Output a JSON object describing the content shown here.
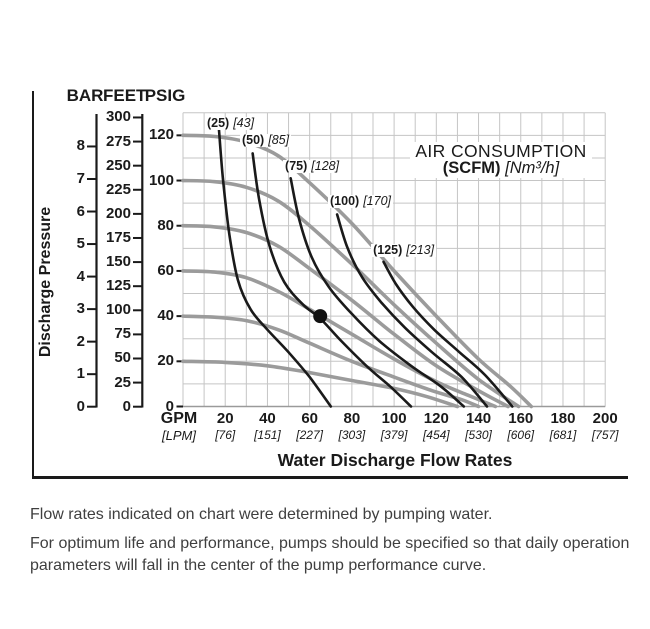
{
  "notes": {
    "line1": "Flow rates indicated on chart were determined by pumping water.",
    "line2": "For optimum life and performance, pumps should be specified so that daily operation parameters will fall in the center of the pump performance curve."
  },
  "chart_data": {
    "type": "line",
    "title": {
      "line1": "AIR CONSUMPTION",
      "scfm": "(SCFM)",
      "unit": "[Nm³/h]"
    },
    "x_axis": {
      "label": "Water Discharge Flow Rates",
      "unit_primary": "GPM",
      "unit_secondary": "[LPM]",
      "xlim_gpm": [
        0,
        200
      ],
      "grid_step_gpm": 10,
      "ticks": [
        {
          "gpm": "20",
          "lpm": "[76]"
        },
        {
          "gpm": "40",
          "lpm": "[151]"
        },
        {
          "gpm": "60",
          "lpm": "[227]"
        },
        {
          "gpm": "80",
          "lpm": "[303]"
        },
        {
          "gpm": "100",
          "lpm": "[379]"
        },
        {
          "gpm": "120",
          "lpm": "[454]"
        },
        {
          "gpm": "140",
          "lpm": "[530]"
        },
        {
          "gpm": "160",
          "lpm": "[606]"
        },
        {
          "gpm": "180",
          "lpm": "[681]"
        },
        {
          "gpm": "200",
          "lpm": "[757]"
        }
      ]
    },
    "y_axis": {
      "label": "Discharge Pressure",
      "ylim_psig": [
        0,
        130
      ],
      "grid_step_psig": 10,
      "scales": {
        "bar": {
          "header": "BAR",
          "ticks": [
            0,
            1,
            2,
            3,
            4,
            5,
            6,
            7,
            8
          ],
          "max": 8
        },
        "feet": {
          "header": "FEET",
          "ticks": [
            0,
            25,
            50,
            75,
            100,
            125,
            150,
            175,
            200,
            225,
            250,
            275,
            300
          ],
          "max": 300
        },
        "psig": {
          "header": "PSIG",
          "ticks": [
            0,
            20,
            40,
            60,
            80,
            100,
            120
          ],
          "max": 120
        }
      }
    },
    "performance_curves": [
      {
        "air_inlet_psig": 120,
        "points": [
          [
            0,
            120
          ],
          [
            15,
            119.5
          ],
          [
            30,
            117
          ],
          [
            45,
            111
          ],
          [
            60,
            99
          ],
          [
            80,
            81
          ],
          [
            100,
            60
          ],
          [
            120,
            40
          ],
          [
            140,
            21
          ],
          [
            155,
            9
          ],
          [
            165,
            0
          ]
        ]
      },
      {
        "air_inlet_psig": 100,
        "points": [
          [
            0,
            100
          ],
          [
            15,
            99.5
          ],
          [
            30,
            97
          ],
          [
            45,
            91
          ],
          [
            60,
            80
          ],
          [
            80,
            63
          ],
          [
            100,
            45
          ],
          [
            120,
            28
          ],
          [
            140,
            12
          ],
          [
            159,
            0
          ]
        ]
      },
      {
        "air_inlet_psig": 80,
        "points": [
          [
            0,
            80
          ],
          [
            15,
            79.5
          ],
          [
            30,
            77
          ],
          [
            45,
            71
          ],
          [
            60,
            61
          ],
          [
            80,
            47
          ],
          [
            100,
            32
          ],
          [
            120,
            18
          ],
          [
            140,
            7
          ],
          [
            154,
            0
          ]
        ]
      },
      {
        "air_inlet_psig": 60,
        "points": [
          [
            0,
            60
          ],
          [
            15,
            59.5
          ],
          [
            30,
            57
          ],
          [
            45,
            51
          ],
          [
            60,
            43
          ],
          [
            80,
            32
          ],
          [
            100,
            21
          ],
          [
            120,
            11
          ],
          [
            135,
            5
          ],
          [
            148,
            0
          ]
        ]
      },
      {
        "air_inlet_psig": 40,
        "points": [
          [
            0,
            40
          ],
          [
            15,
            39.5
          ],
          [
            30,
            38
          ],
          [
            45,
            34
          ],
          [
            60,
            28
          ],
          [
            80,
            20
          ],
          [
            100,
            13
          ],
          [
            118,
            7
          ],
          [
            132,
            3
          ],
          [
            140,
            0
          ]
        ]
      },
      {
        "air_inlet_psig": 20,
        "points": [
          [
            0,
            20
          ],
          [
            20,
            19.5
          ],
          [
            40,
            18
          ],
          [
            60,
            15
          ],
          [
            80,
            11.5
          ],
          [
            100,
            8
          ],
          [
            115,
            4.5
          ],
          [
            130,
            0
          ]
        ]
      }
    ],
    "air_consumption_curves": [
      {
        "scfm": 25,
        "nm3h": 43,
        "label_scfm": "(25)",
        "label_nm3h": "[43]",
        "label_anchor": [
          10.4,
          127.7
        ],
        "points": [
          [
            17,
            123
          ],
          [
            19,
            100
          ],
          [
            22,
            76
          ],
          [
            26,
            56
          ],
          [
            32,
            43
          ],
          [
            40,
            34
          ],
          [
            50,
            24
          ],
          [
            60,
            13
          ],
          [
            70,
            0
          ]
        ]
      },
      {
        "scfm": 50,
        "nm3h": 85,
        "label_scfm": "(50)",
        "label_nm3h": "[85]",
        "label_anchor": [
          27,
          120.1
        ],
        "points": [
          [
            33,
            112
          ],
          [
            36,
            92
          ],
          [
            41,
            71
          ],
          [
            48,
            55
          ],
          [
            57,
            45
          ],
          [
            65,
            39
          ],
          [
            75,
            29
          ],
          [
            88,
            17
          ],
          [
            98,
            9
          ],
          [
            108,
            0
          ]
        ]
      },
      {
        "scfm": 75,
        "nm3h": 128,
        "label_scfm": "(75)",
        "label_nm3h": "[128]",
        "label_anchor": [
          47.4,
          108.6
        ],
        "points": [
          [
            51,
            101
          ],
          [
            55,
            83
          ],
          [
            61,
            66
          ],
          [
            69,
            53
          ],
          [
            80,
            41
          ],
          [
            93,
            29
          ],
          [
            108,
            18
          ],
          [
            122,
            9
          ],
          [
            133,
            0
          ]
        ]
      },
      {
        "scfm": 100,
        "nm3h": 170,
        "label_scfm": "(100)",
        "label_nm3h": "[170]",
        "label_anchor": [
          68.7,
          93.1
        ],
        "points": [
          [
            73,
            85
          ],
          [
            78,
            70
          ],
          [
            85,
            57
          ],
          [
            94,
            46
          ],
          [
            105,
            35
          ],
          [
            118,
            24
          ],
          [
            132,
            13
          ],
          [
            144,
            0
          ]
        ]
      },
      {
        "scfm": 125,
        "nm3h": 213,
        "label_scfm": "(125)",
        "label_nm3h": "[213]",
        "label_anchor": [
          89.1,
          71.5
        ],
        "points": [
          [
            95,
            64
          ],
          [
            101,
            54
          ],
          [
            109,
            44
          ],
          [
            119,
            34
          ],
          [
            131,
            24
          ],
          [
            143,
            14
          ],
          [
            156,
            0
          ]
        ]
      }
    ],
    "operating_point": {
      "gpm": 65,
      "psig": 40
    },
    "colors": {
      "performance_curve": "#9b9b9b",
      "air_curve": "#1a1a1a",
      "grid": "#c5c5c5",
      "axis": "#9a9a9a",
      "text": "#1a1a1a",
      "note_text": "#3f3f3f"
    }
  }
}
